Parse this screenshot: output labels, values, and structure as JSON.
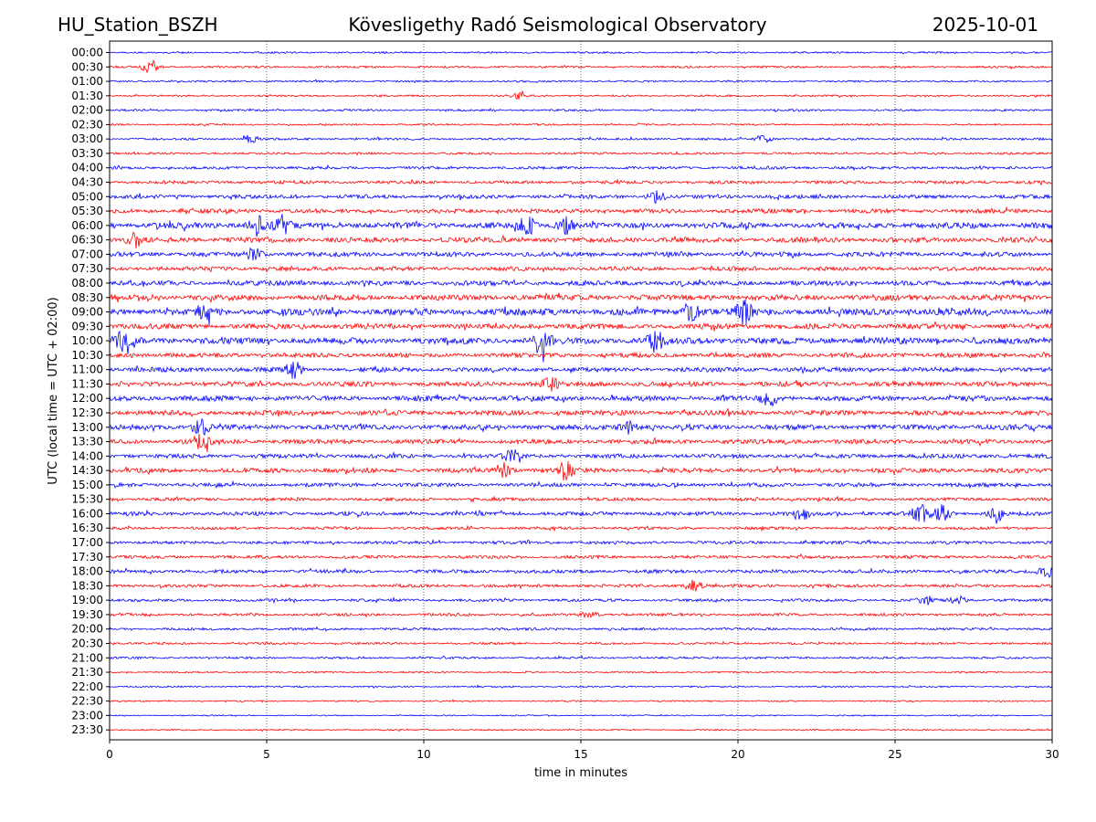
{
  "header": {
    "station": "HU_Station_BSZH",
    "observatory": "Kövesligethy Radó Seismological Observatory",
    "date": "2025-10-01"
  },
  "chart_data": {
    "type": "line",
    "title": "Kövesligethy Radó Seismological Observatory",
    "xlabel": "time in minutes",
    "ylabel": "UTC (local time = UTC + 02:00)",
    "xlim": [
      0,
      30
    ],
    "x_ticks": [
      "0",
      "5",
      "10",
      "15",
      "20",
      "25",
      "30"
    ],
    "x_tick_values": [
      0,
      5,
      10,
      15,
      20,
      25,
      30
    ],
    "grid": "vertical dotted at x ticks",
    "row_labels": [
      "00:00",
      "00:30",
      "01:00",
      "01:30",
      "02:00",
      "02:30",
      "03:00",
      "03:30",
      "04:00",
      "04:30",
      "05:00",
      "05:30",
      "06:00",
      "06:30",
      "07:00",
      "07:30",
      "08:00",
      "08:30",
      "09:00",
      "09:30",
      "10:00",
      "10:30",
      "11:00",
      "11:30",
      "12:00",
      "12:30",
      "13:00",
      "13:30",
      "14:00",
      "14:30",
      "15:00",
      "15:30",
      "16:00",
      "16:30",
      "17:00",
      "17:30",
      "18:00",
      "18:30",
      "19:00",
      "19:30",
      "20:00",
      "20:30",
      "21:00",
      "21:30",
      "22:00",
      "22:30",
      "23:00",
      "23:30"
    ],
    "row_colors": [
      "#0000ff",
      "#ff0000"
    ],
    "row_amplitude": [
      1,
      1.2,
      1,
      1,
      1.1,
      1,
      1.3,
      1.2,
      1.6,
      1.8,
      2.2,
      2.4,
      3.4,
      3,
      2.6,
      2.4,
      2.8,
      3.2,
      3.8,
      3,
      3.6,
      2.6,
      2.6,
      2.8,
      3,
      2.8,
      3,
      2.6,
      2.4,
      2.6,
      2.2,
      1.8,
      2.2,
      1.6,
      1.8,
      1.8,
      2,
      1.8,
      1.6,
      1.6,
      1.4,
      1.2,
      1.2,
      0.9,
      0.9,
      0.8,
      0.7,
      0.8
    ],
    "events": [
      {
        "row": 1,
        "minute": 1.3,
        "amp": 7
      },
      {
        "row": 3,
        "minute": 13.0,
        "amp": 3
      },
      {
        "row": 6,
        "minute": 4.5,
        "amp": 4
      },
      {
        "row": 6,
        "minute": 20.8,
        "amp": 4
      },
      {
        "row": 10,
        "minute": 17.4,
        "amp": 6
      },
      {
        "row": 12,
        "minute": 4.7,
        "amp": 10
      },
      {
        "row": 12,
        "minute": 5.5,
        "amp": 10
      },
      {
        "row": 12,
        "minute": 13.3,
        "amp": 9
      },
      {
        "row": 12,
        "minute": 14.5,
        "amp": 11
      },
      {
        "row": 13,
        "minute": 0.8,
        "amp": 7
      },
      {
        "row": 14,
        "minute": 4.6,
        "amp": 6
      },
      {
        "row": 18,
        "minute": 3.0,
        "amp": 8
      },
      {
        "row": 18,
        "minute": 18.5,
        "amp": 10
      },
      {
        "row": 18,
        "minute": 20.2,
        "amp": 12
      },
      {
        "row": 20,
        "minute": 0.4,
        "amp": 10
      },
      {
        "row": 20,
        "minute": 13.8,
        "amp": 11
      },
      {
        "row": 20,
        "minute": 17.4,
        "amp": 11
      },
      {
        "row": 22,
        "minute": 5.9,
        "amp": 8
      },
      {
        "row": 23,
        "minute": 14.0,
        "amp": 7
      },
      {
        "row": 24,
        "minute": 21.0,
        "amp": 7
      },
      {
        "row": 26,
        "minute": 2.9,
        "amp": 8
      },
      {
        "row": 26,
        "minute": 16.5,
        "amp": 7
      },
      {
        "row": 27,
        "minute": 2.9,
        "amp": 8
      },
      {
        "row": 28,
        "minute": 12.8,
        "amp": 6
      },
      {
        "row": 29,
        "minute": 12.5,
        "amp": 8
      },
      {
        "row": 29,
        "minute": 14.5,
        "amp": 9
      },
      {
        "row": 32,
        "minute": 22.0,
        "amp": 8
      },
      {
        "row": 32,
        "minute": 25.8,
        "amp": 11
      },
      {
        "row": 32,
        "minute": 26.5,
        "amp": 9
      },
      {
        "row": 32,
        "minute": 28.2,
        "amp": 10
      },
      {
        "row": 36,
        "minute": 29.8,
        "amp": 6
      },
      {
        "row": 37,
        "minute": 18.6,
        "amp": 5
      },
      {
        "row": 38,
        "minute": 26.0,
        "amp": 4
      },
      {
        "row": 38,
        "minute": 27.0,
        "amp": 4
      },
      {
        "row": 39,
        "minute": 15.3,
        "amp": 3
      }
    ]
  }
}
